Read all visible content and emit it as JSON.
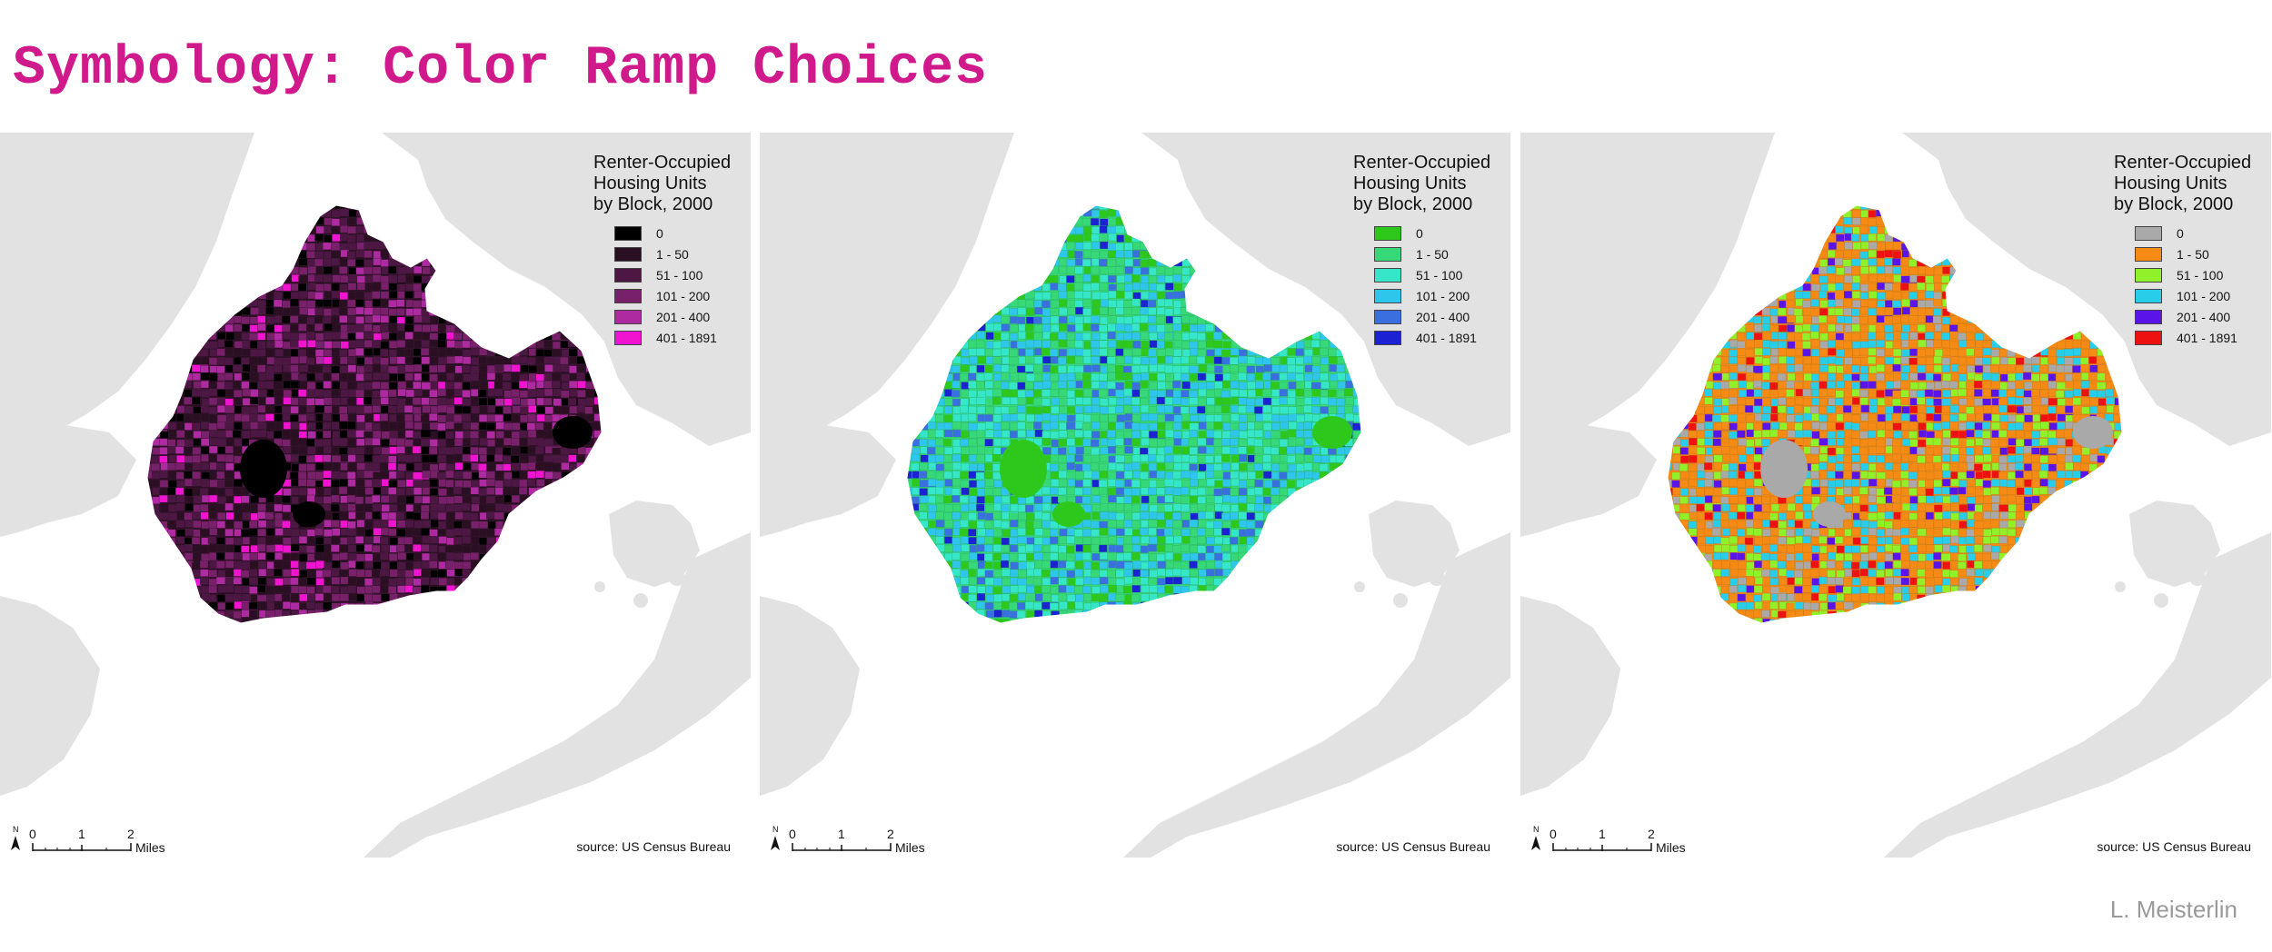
{
  "slide": {
    "title": "Symbology: Color Ramp Choices",
    "author": "L. Meisterlin"
  },
  "map_common": {
    "legend_title_lines": [
      "Renter-Occupied",
      "Housing Units",
      "by Block, 2000"
    ],
    "scale_labels": [
      "0",
      "1",
      "2"
    ],
    "scale_units": "Miles",
    "north_label": "N",
    "source": "source: US Census Bureau",
    "background_land_color": "#e2e2e2",
    "water_color": "#ffffff"
  },
  "maps": [
    {
      "id": "purple-ramp",
      "classes": [
        {
          "label": "0",
          "color": "#000000"
        },
        {
          "label": "1 - 50",
          "color": "#2a0f22"
        },
        {
          "label": "51 - 100",
          "color": "#4d1744"
        },
        {
          "label": "101 - 200",
          "color": "#78206a"
        },
        {
          "label": "201 - 400",
          "color": "#ad2aa0"
        },
        {
          "label": "401 - 1891",
          "color": "#f013d0"
        }
      ]
    },
    {
      "id": "green-blue-ramp",
      "classes": [
        {
          "label": "0",
          "color": "#2ec81c"
        },
        {
          "label": "1 - 50",
          "color": "#37d878"
        },
        {
          "label": "51 - 100",
          "color": "#36e6c8"
        },
        {
          "label": "101 - 200",
          "color": "#2ec6ea"
        },
        {
          "label": "201 - 400",
          "color": "#3a6fe0"
        },
        {
          "label": "401 - 1891",
          "color": "#1a22d2"
        }
      ]
    },
    {
      "id": "multicolor-ramp",
      "classes": [
        {
          "label": "0",
          "color": "#a9a9a9"
        },
        {
          "label": "1 - 50",
          "color": "#f58b14"
        },
        {
          "label": "51 - 100",
          "color": "#90f02a"
        },
        {
          "label": "101 - 200",
          "color": "#28cdea"
        },
        {
          "label": "201 - 400",
          "color": "#5a14e8"
        },
        {
          "label": "401 - 1891",
          "color": "#ee1111"
        }
      ]
    }
  ]
}
